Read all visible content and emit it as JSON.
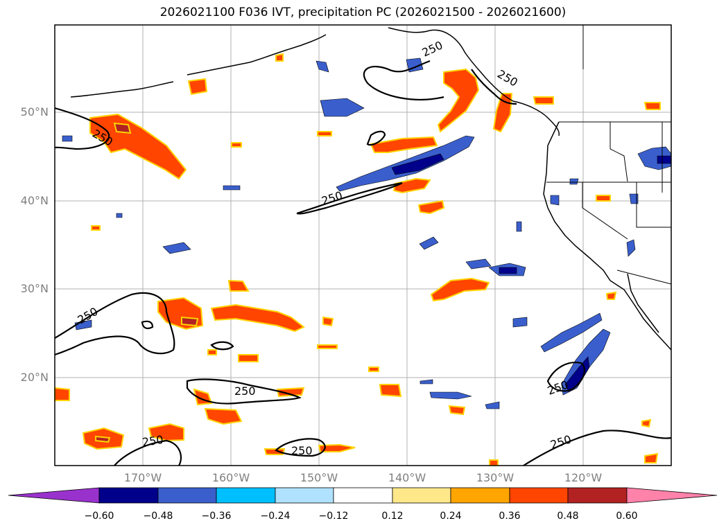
{
  "title": "2026021100 F036 IVT, precipitation PC (2026021500 - 2026021600)",
  "lat_labels": [
    "50°N",
    "40°N",
    "30°N",
    "20°N"
  ],
  "lon_labels": [
    "170°W",
    "160°W",
    "150°W",
    "140°W",
    "130°W",
    "120°W"
  ],
  "contour_label": "250",
  "colorbar": {
    "ticks": [
      "−0.60",
      "−0.48",
      "−0.36",
      "−0.24",
      "−0.12",
      "0.12",
      "0.24",
      "0.36",
      "0.48",
      "0.60"
    ],
    "colors": [
      "#9932cc",
      "#00008b",
      "#3a5fcd",
      "#00bfff",
      "#b0e2ff",
      "#ffffff",
      "#ffe88a",
      "#ffa500",
      "#ff4500",
      "#b22222",
      "#ff82ab"
    ]
  },
  "colors": {
    "ivt_contour": "#000000",
    "coastline": "#000000",
    "grid": "#b0b0b0",
    "axis_label": "#7f7f7f"
  }
}
